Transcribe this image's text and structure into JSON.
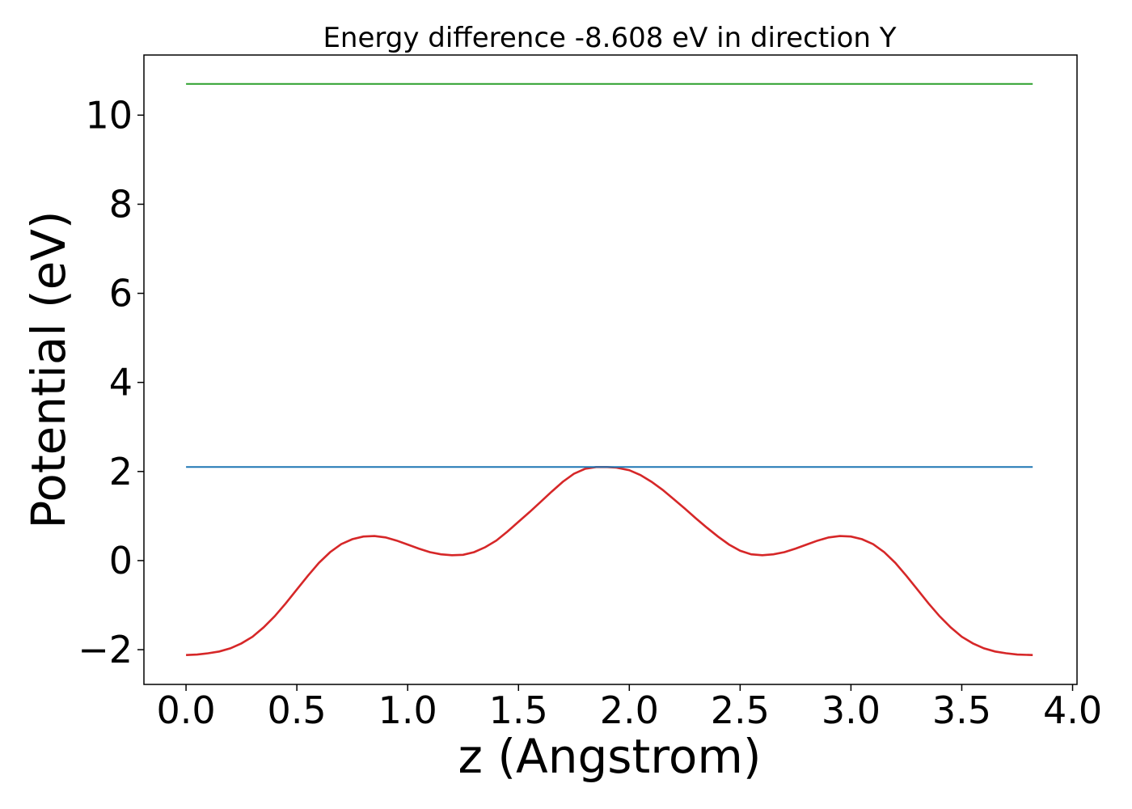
{
  "chart_data": {
    "type": "line",
    "title": "Energy difference -8.608 eV in direction Y",
    "xlabel": "z (Angstrom)",
    "ylabel": "Potential (eV)",
    "xlim": [
      -0.19,
      4.02
    ],
    "ylim": [
      -2.78,
      11.35
    ],
    "x_ticks": [
      {
        "value": 0.0,
        "label": "0.0"
      },
      {
        "value": 0.5,
        "label": "0.5"
      },
      {
        "value": 1.0,
        "label": "1.0"
      },
      {
        "value": 1.5,
        "label": "1.5"
      },
      {
        "value": 2.0,
        "label": "2.0"
      },
      {
        "value": 2.5,
        "label": "2.5"
      },
      {
        "value": 3.0,
        "label": "3.0"
      },
      {
        "value": 3.5,
        "label": "3.5"
      },
      {
        "value": 4.0,
        "label": "4.0"
      }
    ],
    "y_ticks": [
      {
        "value": -2,
        "label": "−2"
      },
      {
        "value": 0,
        "label": "0"
      },
      {
        "value": 2,
        "label": "2"
      },
      {
        "value": 4,
        "label": "4"
      },
      {
        "value": 6,
        "label": "6"
      },
      {
        "value": 8,
        "label": "8"
      },
      {
        "value": 10,
        "label": "10"
      }
    ],
    "grid": false,
    "series": [
      {
        "color": "#d62728",
        "x": [
          0.0,
          0.05,
          0.1,
          0.15,
          0.2,
          0.25,
          0.3,
          0.35,
          0.4,
          0.45,
          0.5,
          0.55,
          0.6,
          0.65,
          0.7,
          0.75,
          0.8,
          0.85,
          0.9,
          0.95,
          1.0,
          1.05,
          1.1,
          1.15,
          1.2,
          1.25,
          1.3,
          1.35,
          1.4,
          1.45,
          1.5,
          1.55,
          1.6,
          1.65,
          1.7,
          1.75,
          1.8,
          1.85,
          1.9,
          1.94,
          2.0,
          2.05,
          2.1,
          2.15,
          2.2,
          2.25,
          2.3,
          2.35,
          2.4,
          2.45,
          2.5,
          2.55,
          2.6,
          2.65,
          2.7,
          2.75,
          2.8,
          2.85,
          2.9,
          2.95,
          3.0,
          3.05,
          3.1,
          3.15,
          3.2,
          3.25,
          3.3,
          3.35,
          3.4,
          3.45,
          3.5,
          3.55,
          3.6,
          3.65,
          3.7,
          3.75,
          3.82
        ],
        "y": [
          -2.12,
          -2.11,
          -2.08,
          -2.04,
          -1.97,
          -1.86,
          -1.71,
          -1.5,
          -1.25,
          -0.96,
          -0.65,
          -0.34,
          -0.05,
          0.19,
          0.37,
          0.48,
          0.54,
          0.55,
          0.52,
          0.45,
          0.36,
          0.27,
          0.19,
          0.14,
          0.12,
          0.13,
          0.19,
          0.3,
          0.45,
          0.65,
          0.87,
          1.09,
          1.32,
          1.55,
          1.77,
          1.95,
          2.06,
          2.1,
          2.1,
          2.09,
          2.03,
          1.92,
          1.77,
          1.59,
          1.38,
          1.17,
          0.95,
          0.74,
          0.54,
          0.36,
          0.22,
          0.14,
          0.12,
          0.14,
          0.19,
          0.27,
          0.36,
          0.45,
          0.52,
          0.55,
          0.54,
          0.48,
          0.37,
          0.19,
          -0.05,
          -0.34,
          -0.65,
          -0.96,
          -1.25,
          -1.5,
          -1.71,
          -1.86,
          -1.97,
          -2.04,
          -2.08,
          -2.11,
          -2.12
        ]
      },
      {
        "color": "#1f77b4",
        "x": [
          0.0,
          3.82
        ],
        "y": [
          2.1,
          2.1
        ]
      },
      {
        "color": "#2ca02c",
        "x": [
          0.0,
          3.82
        ],
        "y": [
          10.7,
          10.7
        ]
      }
    ]
  }
}
